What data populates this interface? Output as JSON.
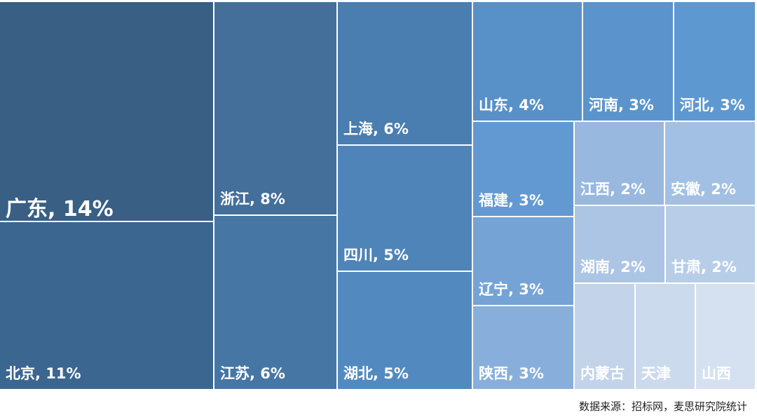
{
  "chart_data": {
    "type": "treemap",
    "unit": "%",
    "items": [
      {
        "name": "广东",
        "value": 14,
        "label": "广东, 14%",
        "color": "#395f84"
      },
      {
        "name": "北京",
        "value": 11,
        "label": "北京, 11%",
        "color": "#3b6690"
      },
      {
        "name": "浙江",
        "value": 8,
        "label": "浙江, 8%",
        "color": "#436f9a"
      },
      {
        "name": "江苏",
        "value": 6,
        "label": "江苏, 6%",
        "color": "#4676a4"
      },
      {
        "name": "上海",
        "value": 6,
        "label": "上海, 6%",
        "color": "#4a7db0"
      },
      {
        "name": "四川",
        "value": 5,
        "label": "四川, 5%",
        "color": "#4e84b8"
      },
      {
        "name": "湖北",
        "value": 5,
        "label": "湖北, 5%",
        "color": "#528abf"
      },
      {
        "name": "山东",
        "value": 4,
        "label": "山东, 4%",
        "color": "#5890c8"
      },
      {
        "name": "河南",
        "value": 3,
        "label": "河南, 3%",
        "color": "#5b94cc"
      },
      {
        "name": "河北",
        "value": 3,
        "label": "河北, 3%",
        "color": "#5e98d0"
      },
      {
        "name": "福建",
        "value": 3,
        "label": "福建, 3%",
        "color": "#6399d2"
      },
      {
        "name": "辽宁",
        "value": 3,
        "label": "辽宁, 3%",
        "color": "#76a3d6"
      },
      {
        "name": "陕西",
        "value": 3,
        "label": "陕西, 3%",
        "color": "#88afdb"
      },
      {
        "name": "江西",
        "value": 2,
        "label": "江西, 2%",
        "color": "#98b8df"
      },
      {
        "name": "安徽",
        "value": 2,
        "label": "安徽, 2%",
        "color": "#a2c0e3"
      },
      {
        "name": "湖南",
        "value": 2,
        "label": "湖南, 2%",
        "color": "#adc5e5"
      },
      {
        "name": "甘肃",
        "value": 2,
        "label": "甘肃, 2%",
        "color": "#b7cde8"
      },
      {
        "name": "内蒙古",
        "value": null,
        "label": "内蒙古",
        "color": "#c2d3ea"
      },
      {
        "name": "天津",
        "value": null,
        "label": "天津",
        "color": "#ccdaed"
      },
      {
        "name": "山西",
        "value": null,
        "label": "山西",
        "color": "#d5e1f0"
      }
    ]
  },
  "source": "数据来源：招标网，麦思研究院统计"
}
